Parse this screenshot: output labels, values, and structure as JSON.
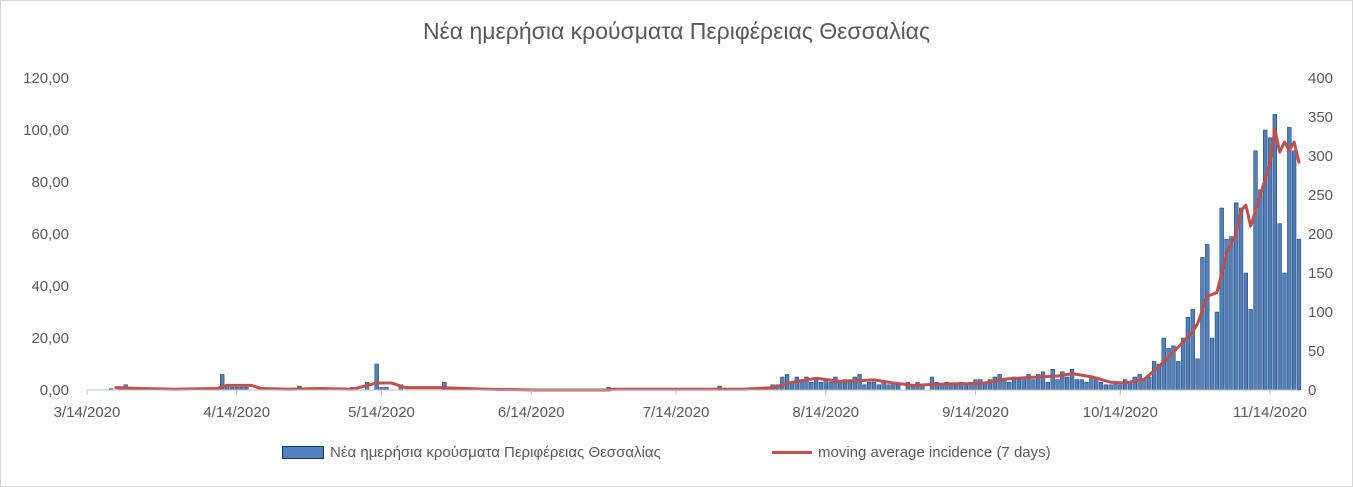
{
  "chart_data": {
    "type": "bar",
    "title": "Νέα ημερήσια κρούσματα Περιφέρειας Θεσσαλίας",
    "x_tick_labels": [
      "3/14/2020",
      "4/14/2020",
      "5/14/2020",
      "6/14/2020",
      "7/14/2020",
      "8/14/2020",
      "9/14/2020",
      "10/14/2020",
      "11/14/2020"
    ],
    "x_start": "3/14/2020",
    "x_end": "11/19/2020",
    "y_left_tick_labels": [
      "0,00",
      "20,00",
      "40,00",
      "60,00",
      "80,00",
      "100,00",
      "120,00"
    ],
    "y_left_lim": [
      0,
      120
    ],
    "y_right_tick_labels": [
      "0",
      "50",
      "100",
      "150",
      "200",
      "250",
      "300",
      "350",
      "400"
    ],
    "y_right_lim": [
      0,
      400
    ],
    "legend_position": "bottom",
    "series": [
      {
        "name": "Νέα ημερήσια κρούσματα Περιφέρειας Θεσσαλίας",
        "type": "bar",
        "axis": "left",
        "color": "#4f81bd",
        "points": [
          [
            "3/19/2020",
            0.5
          ],
          [
            "3/21/2020",
            1
          ],
          [
            "3/22/2020",
            2
          ],
          [
            "3/25/2020",
            0.5
          ],
          [
            "3/27/2020",
            0.5
          ],
          [
            "4/2/2020",
            0.5
          ],
          [
            "4/11/2020",
            6
          ],
          [
            "4/12/2020",
            2
          ],
          [
            "4/13/2020",
            1
          ],
          [
            "4/14/2020",
            1
          ],
          [
            "4/15/2020",
            1
          ],
          [
            "4/16/2020",
            1
          ],
          [
            "4/22/2020",
            0.5
          ],
          [
            "4/27/2020",
            1.5
          ],
          [
            "4/29/2020",
            0.5
          ],
          [
            "5/8/2020",
            1
          ],
          [
            "5/11/2020",
            3
          ],
          [
            "5/13/2020",
            10
          ],
          [
            "5/14/2020",
            1
          ],
          [
            "5/15/2020",
            1
          ],
          [
            "5/18/2020",
            2
          ],
          [
            "5/27/2020",
            3
          ],
          [
            "5/30/2020",
            0.5
          ],
          [
            "6/3/2020",
            0.5
          ],
          [
            "6/30/2020",
            1
          ],
          [
            "7/2/2020",
            0.5
          ],
          [
            "7/11/2020",
            0.5
          ],
          [
            "7/23/2020",
            1.5
          ],
          [
            "7/28/2020",
            0.5
          ],
          [
            "8/2/2020",
            1
          ],
          [
            "8/3/2020",
            2
          ],
          [
            "8/4/2020",
            2
          ],
          [
            "8/5/2020",
            5
          ],
          [
            "8/6/2020",
            6
          ],
          [
            "8/7/2020",
            3
          ],
          [
            "8/8/2020",
            5
          ],
          [
            "8/9/2020",
            4
          ],
          [
            "8/10/2020",
            5
          ],
          [
            "8/11/2020",
            3
          ],
          [
            "8/12/2020",
            4
          ],
          [
            "8/13/2020",
            3
          ],
          [
            "8/14/2020",
            4
          ],
          [
            "8/15/2020",
            3
          ],
          [
            "8/16/2020",
            5
          ],
          [
            "8/17/2020",
            3
          ],
          [
            "8/18/2020",
            4
          ],
          [
            "8/19/2020",
            4
          ],
          [
            "8/20/2020",
            5
          ],
          [
            "8/21/2020",
            6
          ],
          [
            "8/22/2020",
            2
          ],
          [
            "8/23/2020",
            3
          ],
          [
            "8/24/2020",
            3
          ],
          [
            "8/25/2020",
            2
          ],
          [
            "8/26/2020",
            3
          ],
          [
            "8/27/2020",
            2
          ],
          [
            "8/28/2020",
            3
          ],
          [
            "8/29/2020",
            2
          ],
          [
            "8/31/2020",
            3
          ],
          [
            "9/1/2020",
            2
          ],
          [
            "9/2/2020",
            3
          ],
          [
            "9/3/2020",
            2
          ],
          [
            "9/5/2020",
            5
          ],
          [
            "9/6/2020",
            3
          ],
          [
            "9/7/2020",
            2
          ],
          [
            "9/8/2020",
            3
          ],
          [
            "9/9/2020",
            2
          ],
          [
            "9/10/2020",
            2
          ],
          [
            "9/11/2020",
            3
          ],
          [
            "9/12/2020",
            2
          ],
          [
            "9/13/2020",
            3
          ],
          [
            "9/14/2020",
            4
          ],
          [
            "9/15/2020",
            4
          ],
          [
            "9/16/2020",
            3
          ],
          [
            "9/17/2020",
            4
          ],
          [
            "9/18/2020",
            5
          ],
          [
            "9/19/2020",
            6
          ],
          [
            "9/20/2020",
            4
          ],
          [
            "9/21/2020",
            3
          ],
          [
            "9/22/2020",
            5
          ],
          [
            "9/23/2020",
            4
          ],
          [
            "9/24/2020",
            5
          ],
          [
            "9/25/2020",
            6
          ],
          [
            "9/26/2020",
            4
          ],
          [
            "9/27/2020",
            6
          ],
          [
            "9/28/2020",
            7
          ],
          [
            "9/29/2020",
            3
          ],
          [
            "9/30/2020",
            8
          ],
          [
            "10/1/2020",
            4
          ],
          [
            "10/2/2020",
            7
          ],
          [
            "10/3/2020",
            5
          ],
          [
            "10/4/2020",
            8
          ],
          [
            "10/5/2020",
            4
          ],
          [
            "10/6/2020",
            4
          ],
          [
            "10/7/2020",
            3
          ],
          [
            "10/8/2020",
            5
          ],
          [
            "10/9/2020",
            4
          ],
          [
            "10/10/2020",
            3
          ],
          [
            "10/11/2020",
            2
          ],
          [
            "10/12/2020",
            2
          ],
          [
            "10/13/2020",
            3
          ],
          [
            "10/14/2020",
            2
          ],
          [
            "10/15/2020",
            4
          ],
          [
            "10/16/2020",
            3
          ],
          [
            "10/17/2020",
            5
          ],
          [
            "10/18/2020",
            6
          ],
          [
            "10/19/2020",
            4
          ],
          [
            "10/20/2020",
            5
          ],
          [
            "10/21/2020",
            11
          ],
          [
            "10/22/2020",
            10
          ],
          [
            "10/23/2020",
            20
          ],
          [
            "10/24/2020",
            16
          ],
          [
            "10/25/2020",
            17
          ],
          [
            "10/26/2020",
            11
          ],
          [
            "10/27/2020",
            20
          ],
          [
            "10/28/2020",
            28
          ],
          [
            "10/29/2020",
            31
          ],
          [
            "10/30/2020",
            12
          ],
          [
            "10/31/2020",
            51
          ],
          [
            "11/1/2020",
            56
          ],
          [
            "11/2/2020",
            20
          ],
          [
            "11/3/2020",
            30
          ],
          [
            "11/4/2020",
            70
          ],
          [
            "11/5/2020",
            58
          ],
          [
            "11/6/2020",
            59
          ],
          [
            "11/7/2020",
            72
          ],
          [
            "11/8/2020",
            70
          ],
          [
            "11/9/2020",
            45
          ],
          [
            "11/10/2020",
            31
          ],
          [
            "11/11/2020",
            92
          ],
          [
            "11/12/2020",
            77
          ],
          [
            "11/13/2020",
            100
          ],
          [
            "11/14/2020",
            97
          ],
          [
            "11/15/2020",
            106
          ],
          [
            "11/16/2020",
            64
          ],
          [
            "11/17/2020",
            45
          ],
          [
            "11/18/2020",
            101
          ],
          [
            "11/19/2020",
            92
          ],
          [
            "11/20/2020",
            58
          ]
        ]
      },
      {
        "name": "moving average incidence (7 days)",
        "type": "line",
        "axis": "right",
        "color": "#c0504d",
        "points": [
          [
            "3/20/2020",
            3
          ],
          [
            "3/25/2020",
            2
          ],
          [
            "4/1/2020",
            1
          ],
          [
            "4/10/2020",
            2
          ],
          [
            "4/12/2020",
            6
          ],
          [
            "4/17/2020",
            6
          ],
          [
            "4/19/2020",
            2
          ],
          [
            "4/25/2020",
            1
          ],
          [
            "5/1/2020",
            2
          ],
          [
            "5/8/2020",
            1
          ],
          [
            "5/13/2020",
            9
          ],
          [
            "5/16/2020",
            9
          ],
          [
            "5/19/2020",
            3
          ],
          [
            "5/26/2020",
            3
          ],
          [
            "6/5/2020",
            1
          ],
          [
            "6/15/2020",
            0
          ],
          [
            "6/30/2020",
            0
          ],
          [
            "7/1/2020",
            1
          ],
          [
            "7/10/2020",
            1
          ],
          [
            "7/28/2020",
            1
          ],
          [
            "8/3/2020",
            3
          ],
          [
            "8/7/2020",
            10
          ],
          [
            "8/12/2020",
            15
          ],
          [
            "8/17/2020",
            11
          ],
          [
            "8/24/2020",
            13
          ],
          [
            "8/28/2020",
            9
          ],
          [
            "9/1/2020",
            6
          ],
          [
            "9/5/2020",
            7
          ],
          [
            "9/10/2020",
            8
          ],
          [
            "9/15/2020",
            8
          ],
          [
            "9/20/2020",
            14
          ],
          [
            "9/25/2020",
            16
          ],
          [
            "10/1/2020",
            18
          ],
          [
            "10/4/2020",
            21
          ],
          [
            "10/8/2020",
            17
          ],
          [
            "10/12/2020",
            10
          ],
          [
            "10/15/2020",
            9
          ],
          [
            "10/19/2020",
            14
          ],
          [
            "10/22/2020",
            30
          ],
          [
            "10/26/2020",
            55
          ],
          [
            "10/29/2020",
            75
          ],
          [
            "10/30/2020",
            85
          ],
          [
            "11/1/2020",
            120
          ],
          [
            "11/3/2020",
            125
          ],
          [
            "11/5/2020",
            175
          ],
          [
            "11/7/2020",
            200
          ],
          [
            "11/8/2020",
            230
          ],
          [
            "11/9/2020",
            237
          ],
          [
            "11/10/2020",
            210
          ],
          [
            "11/12/2020",
            250
          ],
          [
            "11/14/2020",
            290
          ],
          [
            "11/15/2020",
            335
          ],
          [
            "11/16/2020",
            305
          ],
          [
            "11/17/2020",
            318
          ],
          [
            "11/18/2020",
            307
          ],
          [
            "11/19/2020",
            318
          ],
          [
            "11/20/2020",
            292
          ]
        ]
      }
    ]
  },
  "legend": {
    "bar_label": "Νέα ημερήσια κρούσματα Περιφέρειας Θεσσαλίας",
    "line_label": "moving average incidence (7 days)"
  }
}
